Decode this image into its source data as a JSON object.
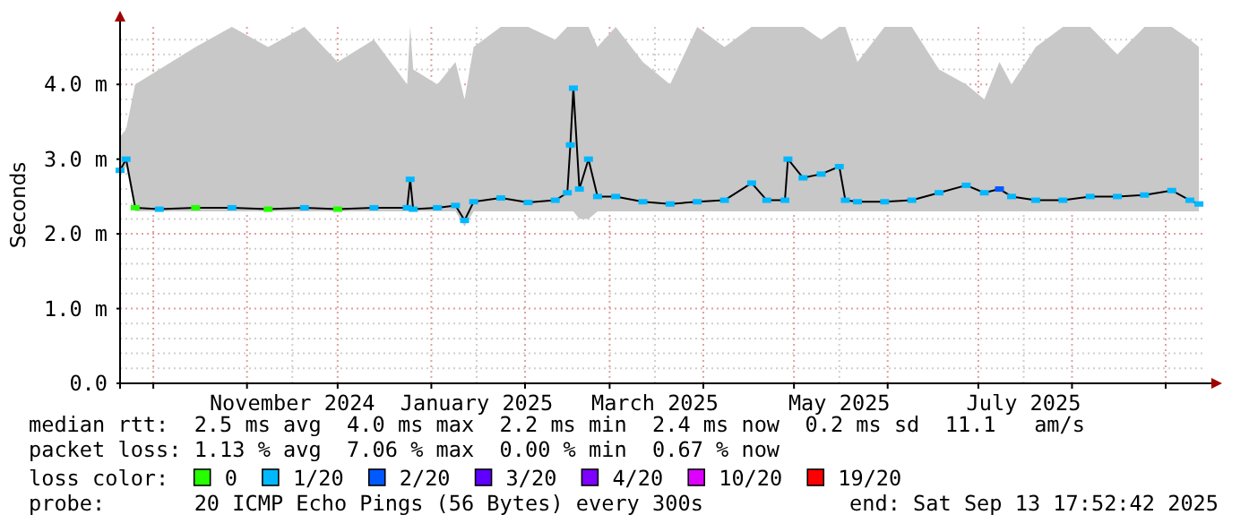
{
  "chart_data": {
    "type": "line",
    "ylabel": "Seconds",
    "x": [
      "2024-09-20",
      "2024-09-22",
      "2024-09-25",
      "2024-10-03",
      "2024-10-15",
      "2024-10-27",
      "2024-11-08",
      "2024-11-20",
      "2024-12-01",
      "2024-12-13",
      "2024-12-24",
      "2024-12-25",
      "2024-12-26",
      "2025-01-03",
      "2025-01-09",
      "2025-01-12",
      "2025-01-15",
      "2025-01-24",
      "2025-02-02",
      "2025-02-11",
      "2025-02-15",
      "2025-02-16",
      "2025-02-17",
      "2025-02-19",
      "2025-02-22",
      "2025-02-25",
      "2025-03-03",
      "2025-03-12",
      "2025-03-21",
      "2025-03-30",
      "2025-04-08",
      "2025-04-17",
      "2025-04-22",
      "2025-04-28",
      "2025-04-29",
      "2025-05-04",
      "2025-05-10",
      "2025-05-16",
      "2025-05-18",
      "2025-05-22",
      "2025-05-31",
      "2025-06-09",
      "2025-06-18",
      "2025-06-27",
      "2025-07-03",
      "2025-07-08",
      "2025-07-12",
      "2025-07-20",
      "2025-07-29",
      "2025-08-07",
      "2025-08-16",
      "2025-08-25",
      "2025-09-03",
      "2025-09-09",
      "2025-09-12"
    ],
    "series": [
      {
        "color": "#000000",
        "marker": "none",
        "values": [
          2.85,
          3.0,
          2.35,
          2.33,
          2.35,
          2.35,
          2.33,
          2.35,
          2.33,
          2.35,
          2.35,
          2.73,
          2.33,
          2.35,
          2.38,
          2.18,
          2.43,
          2.48,
          2.42,
          2.45,
          2.55,
          3.19,
          3.95,
          2.6,
          3.0,
          2.5,
          2.5,
          2.43,
          2.4,
          2.43,
          2.45,
          2.68,
          2.45,
          2.45,
          3.0,
          2.75,
          2.8,
          2.9,
          2.45,
          2.43,
          2.43,
          2.45,
          2.55,
          2.65,
          2.55,
          2.6,
          2.5,
          2.45,
          2.45,
          2.5,
          2.5,
          2.52,
          2.58,
          2.45,
          2.4
        ],
        "lower": [
          2.8,
          2.9,
          2.3,
          2.3,
          2.3,
          2.3,
          2.3,
          2.3,
          2.3,
          2.3,
          2.3,
          2.3,
          2.3,
          2.3,
          2.3,
          2.1,
          2.3,
          2.3,
          2.3,
          2.3,
          2.3,
          2.3,
          2.3,
          2.2,
          2.2,
          2.3,
          2.3,
          2.3,
          2.3,
          2.3,
          2.3,
          2.3,
          2.3,
          2.3,
          2.3,
          2.3,
          2.3,
          2.3,
          2.3,
          2.3,
          2.3,
          2.3,
          2.3,
          2.3,
          2.3,
          2.3,
          2.3,
          2.3,
          2.3,
          2.3,
          2.3,
          2.3,
          2.3,
          2.3,
          2.3
        ],
        "upper": [
          3.3,
          3.4,
          4.0,
          4.2,
          4.5,
          4.77,
          4.5,
          4.77,
          4.3,
          4.6,
          4.0,
          4.77,
          4.2,
          4.0,
          4.3,
          3.8,
          4.5,
          4.77,
          4.77,
          4.6,
          4.77,
          4.77,
          4.77,
          4.77,
          4.77,
          4.5,
          4.77,
          4.3,
          4.0,
          4.77,
          4.5,
          4.77,
          4.77,
          4.77,
          4.77,
          4.77,
          4.6,
          4.77,
          4.77,
          4.3,
          4.77,
          4.77,
          4.2,
          4.0,
          3.8,
          4.3,
          4.0,
          4.5,
          4.77,
          4.77,
          4.4,
          4.77,
          4.77,
          4.6,
          4.5
        ]
      },
      {
        "type": "scatter",
        "name": "0",
        "color": "#26ff00",
        "values": [
          null,
          null,
          2.35,
          null,
          2.35,
          null,
          2.33,
          null,
          2.33,
          null,
          null,
          null,
          null,
          null,
          null,
          null,
          null,
          null,
          null,
          null,
          null,
          null,
          null,
          null,
          null,
          null,
          null,
          null,
          null,
          null,
          null,
          null,
          null,
          null,
          null,
          null,
          null,
          null,
          null,
          null,
          null,
          null,
          null,
          null,
          null,
          null,
          null,
          null,
          null,
          null,
          null,
          null,
          null,
          null,
          null
        ]
      },
      {
        "type": "scatter",
        "name": "1/20",
        "color": "#00b8ff",
        "values": [
          2.85,
          3.0,
          null,
          2.33,
          null,
          2.35,
          null,
          2.35,
          null,
          2.35,
          2.35,
          2.73,
          2.33,
          2.35,
          2.38,
          2.18,
          2.43,
          2.48,
          2.42,
          2.45,
          2.55,
          3.19,
          3.95,
          2.6,
          3.0,
          2.5,
          2.5,
          2.43,
          2.4,
          2.43,
          2.45,
          2.68,
          2.45,
          2.45,
          3.0,
          2.75,
          2.8,
          2.9,
          2.45,
          2.43,
          2.43,
          2.45,
          2.55,
          2.65,
          2.55,
          null,
          2.5,
          2.45,
          2.45,
          2.5,
          2.5,
          2.52,
          2.58,
          2.45,
          2.4
        ]
      },
      {
        "type": "scatter",
        "name": "2/20",
        "color": "#0059ff",
        "values": [
          null,
          null,
          null,
          null,
          null,
          null,
          null,
          null,
          null,
          null,
          null,
          null,
          null,
          null,
          null,
          null,
          null,
          null,
          null,
          null,
          null,
          null,
          null,
          null,
          null,
          null,
          null,
          null,
          null,
          null,
          null,
          null,
          null,
          null,
          null,
          null,
          null,
          null,
          null,
          null,
          null,
          null,
          null,
          null,
          null,
          2.6,
          null,
          null,
          null,
          null,
          null,
          null,
          null,
          null,
          null
        ]
      },
      {
        "type": "scatter",
        "name": "3/20",
        "color": "#5e00ff",
        "values": [
          null,
          null,
          null,
          null,
          null,
          null,
          null,
          null,
          null,
          null,
          null,
          null,
          null,
          null,
          null,
          null,
          null,
          null,
          null,
          null,
          null,
          null,
          null,
          null,
          null,
          null,
          null,
          null,
          null,
          null,
          null,
          null,
          null,
          null,
          null,
          null,
          null,
          null,
          null,
          null,
          null,
          null,
          null,
          null,
          null,
          null,
          null,
          null,
          null,
          null,
          null,
          null,
          null,
          null,
          null
        ]
      },
      {
        "type": "scatter",
        "name": "4/20",
        "color": "#7e00ff",
        "values": [
          null,
          null,
          null,
          null,
          null,
          null,
          null,
          null,
          null,
          null,
          null,
          null,
          null,
          null,
          null,
          null,
          null,
          null,
          null,
          null,
          null,
          null,
          null,
          null,
          null,
          null,
          null,
          null,
          null,
          null,
          null,
          null,
          null,
          null,
          null,
          null,
          null,
          null,
          null,
          null,
          null,
          null,
          null,
          null,
          null,
          null,
          null,
          null,
          null,
          null,
          null,
          null,
          null,
          null,
          null
        ]
      },
      {
        "type": "scatter",
        "name": "10/20",
        "color": "#dd00ff",
        "values": [
          null,
          null,
          null,
          null,
          null,
          null,
          null,
          null,
          null,
          null,
          null,
          null,
          null,
          null,
          null,
          null,
          null,
          null,
          null,
          null,
          null,
          null,
          null,
          null,
          null,
          null,
          null,
          null,
          null,
          null,
          null,
          null,
          null,
          null,
          null,
          null,
          null,
          null,
          null,
          null,
          null,
          null,
          null,
          null,
          null,
          null,
          null,
          null,
          null,
          null,
          null,
          null,
          null,
          null,
          null
        ]
      },
      {
        "type": "scatter",
        "name": "19/20",
        "color": "#ff0000",
        "values": [
          null,
          null,
          null,
          null,
          null,
          null,
          null,
          null,
          null,
          null,
          null,
          null,
          null,
          null,
          null,
          null,
          null,
          null,
          null,
          null,
          null,
          null,
          null,
          null,
          null,
          null,
          null,
          null,
          null,
          null,
          null,
          null,
          null,
          null,
          null,
          null,
          null,
          null,
          null,
          null,
          null,
          null,
          null,
          null,
          null,
          null,
          null,
          null,
          null,
          null,
          null,
          null,
          null,
          null,
          null
        ]
      }
    ],
    "xlim": [
      "2024-09-20",
      "2025-09-13T17:52"
    ],
    "xticks": [
      {
        "value": "2024-10-01",
        "label": null
      },
      {
        "value": "2024-11-01",
        "label": null
      },
      {
        "value": "2024-11-16",
        "label": "November 2024"
      },
      {
        "value": "2024-12-01",
        "label": null
      },
      {
        "value": "2025-01-01",
        "label": null
      },
      {
        "value": "2025-01-16",
        "label": "January 2025"
      },
      {
        "value": "2025-02-01",
        "label": null
      },
      {
        "value": "2025-03-01",
        "label": null
      },
      {
        "value": "2025-03-16",
        "label": "March 2025"
      },
      {
        "value": "2025-04-01",
        "label": null
      },
      {
        "value": "2025-05-01",
        "label": null
      },
      {
        "value": "2025-05-16",
        "label": "May 2025"
      },
      {
        "value": "2025-06-01",
        "label": null
      },
      {
        "value": "2025-07-01",
        "label": null
      },
      {
        "value": "2025-07-16",
        "label": "July 2025"
      },
      {
        "value": "2025-08-01",
        "label": null
      },
      {
        "value": "2025-09-01",
        "label": null
      }
    ],
    "ylim": [
      0,
      4.77
    ],
    "yticks": [
      {
        "value": 0,
        "label": "0.0"
      },
      {
        "value": 0.2,
        "label": null
      },
      {
        "value": 0.4,
        "label": null
      },
      {
        "value": 0.6,
        "label": null
      },
      {
        "value": 0.8,
        "label": null
      },
      {
        "value": 1,
        "label": "1.0 m"
      },
      {
        "value": 1.2,
        "label": null
      },
      {
        "value": 1.4,
        "label": null
      },
      {
        "value": 1.6,
        "label": null
      },
      {
        "value": 1.8,
        "label": null
      },
      {
        "value": 2,
        "label": "2.0 m"
      },
      {
        "value": 2.2,
        "label": null
      },
      {
        "value": 2.4,
        "label": null
      },
      {
        "value": 2.6,
        "label": null
      },
      {
        "value": 2.8,
        "label": null
      },
      {
        "value": 3,
        "label": "3.0 m"
      },
      {
        "value": 3.2,
        "label": null
      },
      {
        "value": 3.4,
        "label": null
      },
      {
        "value": 3.6,
        "label": null
      },
      {
        "value": 3.8,
        "label": null
      },
      {
        "value": 4,
        "label": "4.0 m"
      },
      {
        "value": 4.2,
        "label": null
      },
      {
        "value": 4.4,
        "label": null
      },
      {
        "value": 4.6,
        "label": null
      }
    ],
    "grid": true,
    "marker": "square",
    "legend": "bottom",
    "legend_title": "loss color:",
    "annotations": [
      "median rtt:  2.5 ms avg  4.0 ms max  2.2 ms min  2.4 ms now  0.2 ms sd  11.1   am/s",
      "packet loss: 1.13 % avg  7.06 % max  0.00 % min  0.67 % now",
      "probe:       20 ICMP Echo Pings (56 Bytes) every 300s",
      "end: Sat Sep 13 17:52:42 2025"
    ]
  }
}
